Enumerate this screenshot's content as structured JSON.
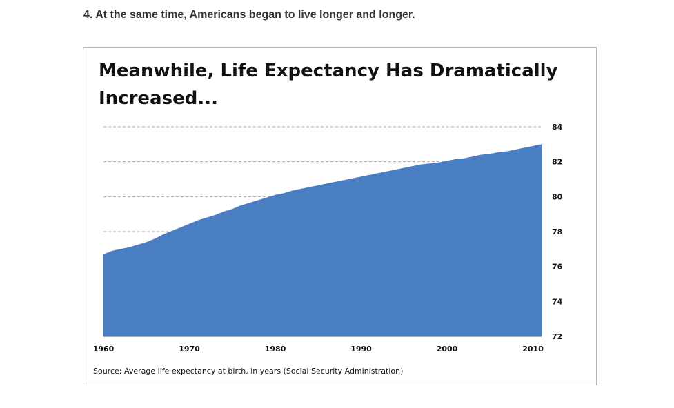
{
  "heading": "4. At the same time, Americans began to live longer and longer.",
  "chart_data": {
    "type": "area",
    "title": "Meanwhile, Life Expectancy Has Dramatically Increased...",
    "source": "Source: Average life expectancy at birth, in years (Social Security Administration)",
    "x": [
      1960,
      1961,
      1962,
      1963,
      1964,
      1965,
      1966,
      1967,
      1968,
      1969,
      1970,
      1971,
      1972,
      1973,
      1974,
      1975,
      1976,
      1977,
      1978,
      1979,
      1980,
      1981,
      1982,
      1983,
      1984,
      1985,
      1986,
      1987,
      1988,
      1989,
      1990,
      1991,
      1992,
      1993,
      1994,
      1995,
      1996,
      1997,
      1998,
      1999,
      2000,
      2001,
      2002,
      2003,
      2004,
      2005,
      2006,
      2007,
      2008,
      2009,
      2010,
      2011
    ],
    "y": [
      76.7,
      76.9,
      77.0,
      77.1,
      77.25,
      77.4,
      77.6,
      77.85,
      78.05,
      78.25,
      78.45,
      78.65,
      78.8,
      78.95,
      79.15,
      79.3,
      79.5,
      79.65,
      79.8,
      79.95,
      80.1,
      80.2,
      80.35,
      80.45,
      80.55,
      80.65,
      80.75,
      80.85,
      80.95,
      81.05,
      81.15,
      81.25,
      81.35,
      81.45,
      81.55,
      81.65,
      81.75,
      81.85,
      81.9,
      81.95,
      82.05,
      82.15,
      82.2,
      82.3,
      82.4,
      82.45,
      82.55,
      82.6,
      82.7,
      82.8,
      82.9,
      83.0
    ],
    "xlim": [
      1960,
      2011
    ],
    "ylim": [
      72,
      84
    ],
    "xticks": [
      "1960",
      "1970",
      "1980",
      "1990",
      "2000",
      "2010"
    ],
    "yticks": [
      "72",
      "74",
      "76",
      "78",
      "80",
      "82",
      "84"
    ],
    "ytick_side": "right",
    "grid": "horizontal-dashed",
    "fill_color": "#4a7ec3",
    "grid_color": "#a8a8a8"
  }
}
